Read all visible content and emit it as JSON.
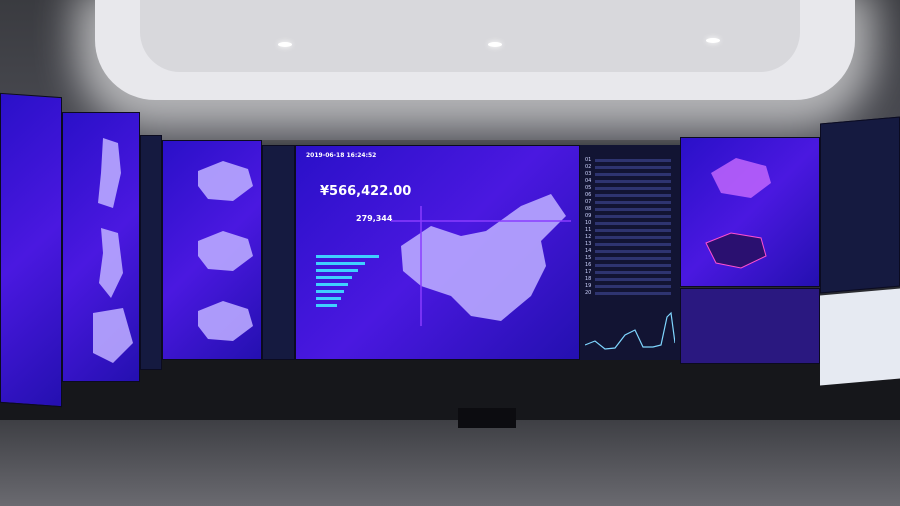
{
  "main_screen": {
    "timestamp": "2019-06-18 16:24:52",
    "amount": "¥566,422.00",
    "count": "279,344"
  },
  "ranking": {
    "ranks": [
      "01",
      "02",
      "03",
      "04",
      "05",
      "06",
      "07",
      "08",
      "09",
      "10",
      "11",
      "12",
      "13",
      "14",
      "15",
      "16",
      "17",
      "18",
      "19",
      "20"
    ]
  },
  "colors": {
    "screen": "#3a16d8",
    "accent": "#3fd0ff",
    "map": "#b9a8ff"
  }
}
